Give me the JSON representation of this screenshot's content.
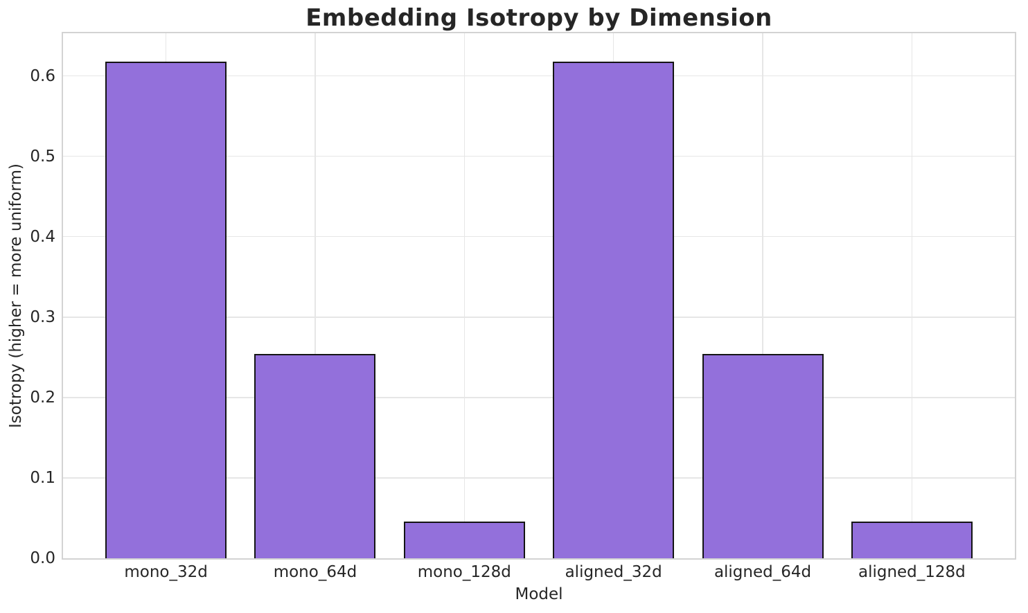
{
  "chart_data": {
    "type": "bar",
    "title": "Embedding Isotropy by Dimension",
    "xlabel": "Model",
    "ylabel": "Isotropy (higher = more uniform)",
    "categories": [
      "mono_32d",
      "mono_64d",
      "mono_128d",
      "aligned_32d",
      "aligned_64d",
      "aligned_128d"
    ],
    "values": [
      0.618,
      0.254,
      0.046,
      0.618,
      0.254,
      0.046
    ],
    "ylim": [
      0,
      0.653
    ],
    "yticks": [
      0.0,
      0.1,
      0.2,
      0.3,
      0.4,
      0.5,
      0.6
    ],
    "grid": true,
    "legend": "none",
    "bar_fill_color": "#9370DB",
    "bar_edge_color": "#141414",
    "grid_color": "#e6e6e6",
    "spine_color": "#d3d3d3",
    "text_color": "#262626"
  }
}
